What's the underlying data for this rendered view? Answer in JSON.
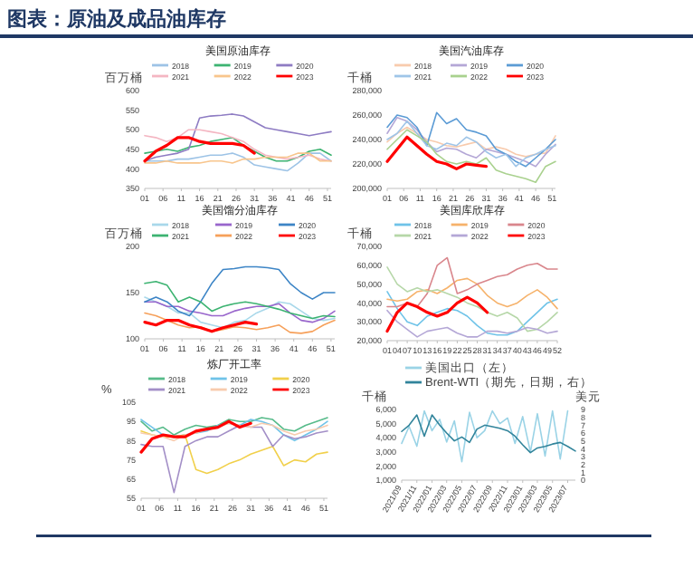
{
  "chart_data": [
    {
      "type": "other",
      "title": "图表：原油及成品油库存"
    },
    {
      "type": "line",
      "title": "美国原油库存",
      "ylabel": "百万桶",
      "legend": "top",
      "x": [
        1,
        4,
        7,
        10,
        13,
        16,
        19,
        22,
        25,
        28,
        31,
        34,
        37,
        40,
        43,
        46,
        49,
        52
      ],
      "xlim": [
        1,
        52
      ],
      "xticks": [
        {
          "value": 1,
          "label": "01"
        },
        {
          "value": 6,
          "label": "06"
        },
        11,
        16,
        21,
        26,
        31,
        36,
        41,
        46,
        51
      ],
      "ylim": [
        350,
        600
      ],
      "yticks": [
        350,
        400,
        450,
        500,
        550,
        600
      ],
      "series": [
        {
          "name": "2018",
          "color": "#9dc3e6",
          "values": [
            420,
            420,
            420,
            425,
            425,
            430,
            435,
            435,
            440,
            430,
            410,
            405,
            400,
            395,
            415,
            440,
            440,
            420
          ]
        },
        {
          "name": "2019",
          "color": "#3cb371",
          "values": [
            440,
            445,
            450,
            445,
            455,
            460,
            470,
            475,
            480,
            460,
            445,
            430,
            420,
            420,
            430,
            445,
            450,
            435
          ]
        },
        {
          "name": "2020",
          "color": "#8e7cc3",
          "values": [
            420,
            430,
            435,
            440,
            450,
            530,
            535,
            537,
            540,
            535,
            520,
            505,
            500,
            495,
            490,
            485,
            490,
            495
          ]
        },
        {
          "name": "2021",
          "color": "#f4b6c2",
          "values": [
            485,
            480,
            470,
            480,
            500,
            500,
            495,
            490,
            480,
            470,
            450,
            435,
            430,
            425,
            430,
            435,
            425,
            420
          ]
        },
        {
          "name": "2022",
          "color": "#f8c58c",
          "values": [
            415,
            415,
            420,
            415,
            415,
            415,
            420,
            420,
            415,
            425,
            425,
            430,
            430,
            430,
            440,
            440,
            420,
            420
          ]
        },
        {
          "name": "2023",
          "color": "#ff0000",
          "x": [
            1,
            4,
            7,
            10,
            13,
            16,
            19,
            22,
            25,
            28,
            31
          ],
          "values": [
            420,
            445,
            460,
            480,
            480,
            470,
            465,
            465,
            465,
            460,
            440
          ]
        }
      ]
    },
    {
      "type": "line",
      "title": "美国汽油库存",
      "ylabel": "千桶",
      "legend": "top",
      "x": [
        1,
        4,
        7,
        10,
        13,
        16,
        19,
        22,
        25,
        28,
        31,
        34,
        37,
        40,
        43,
        46,
        49,
        52
      ],
      "xlim": [
        1,
        52
      ],
      "xticks": [
        {
          "value": 1,
          "label": "01"
        },
        {
          "value": 6,
          "label": "06"
        },
        11,
        16,
        21,
        26,
        31,
        36,
        41,
        46,
        51
      ],
      "ylim": [
        200000,
        280000
      ],
      "yticks": [
        {
          "value": 200000,
          "label": "200,000"
        },
        {
          "value": 220000,
          "label": "220,000"
        },
        {
          "value": 240000,
          "label": "240,000"
        },
        {
          "value": 260000,
          "label": "260,000"
        },
        {
          "value": 280000,
          "label": "280,000"
        }
      ],
      "series": [
        {
          "name": "2018",
          "color": "#f8cbad",
          "values": [
            238000,
            245000,
            250000,
            245000,
            240000,
            238000,
            235000,
            234000,
            236000,
            238000,
            232000,
            234000,
            232000,
            228000,
            226000,
            228000,
            229000,
            243000
          ]
        },
        {
          "name": "2019",
          "color": "#b4a7d6",
          "values": [
            245000,
            258000,
            255000,
            248000,
            238000,
            230000,
            233000,
            232000,
            228000,
            225000,
            232000,
            230000,
            228000,
            225000,
            222000,
            218000,
            228000,
            236000
          ]
        },
        {
          "name": "2020",
          "color": "#5b9bd5",
          "values": [
            250000,
            260000,
            258000,
            250000,
            235000,
            262000,
            253000,
            257000,
            248000,
            246000,
            243000,
            232000,
            228000,
            222000,
            218000,
            225000,
            232000,
            240000
          ]
        },
        {
          "name": "2021",
          "color": "#9fc5e8",
          "values": [
            240000,
            245000,
            255000,
            245000,
            235000,
            232000,
            237000,
            235000,
            242000,
            238000,
            230000,
            225000,
            228000,
            218000,
            225000,
            228000,
            232000,
            235000
          ]
        },
        {
          "name": "2022",
          "color": "#a9d18e",
          "values": [
            232000,
            240000,
            248000,
            243000,
            238000,
            228000,
            222000,
            220000,
            222000,
            220000,
            225000,
            215000,
            212000,
            210000,
            208000,
            205000,
            218000,
            222000
          ]
        },
        {
          "name": "2023",
          "color": "#ff0000",
          "x": [
            1,
            4,
            7,
            10,
            13,
            16,
            19,
            22,
            25,
            28,
            31
          ],
          "values": [
            222000,
            232000,
            242000,
            235000,
            228000,
            222000,
            220000,
            216000,
            220000,
            219000,
            218000
          ]
        }
      ]
    },
    {
      "type": "line",
      "title": "美国馏分油库存",
      "ylabel": "百万桶",
      "legend": "top",
      "x": [
        1,
        4,
        7,
        10,
        13,
        16,
        19,
        22,
        25,
        28,
        31,
        34,
        37,
        40,
        43,
        46,
        49,
        52
      ],
      "xlim": [
        1,
        52
      ],
      "xticks": [
        {
          "value": 1,
          "label": "01"
        },
        {
          "value": 6,
          "label": "06"
        },
        11,
        16,
        21,
        26,
        31,
        36,
        41,
        46,
        51
      ],
      "ylim": [
        100,
        200
      ],
      "yticks": [
        100,
        150,
        200
      ],
      "series": [
        {
          "name": "2018",
          "color": "#a9d8ea",
          "values": [
            145,
            140,
            135,
            128,
            128,
            118,
            115,
            112,
            118,
            120,
            128,
            133,
            140,
            138,
            130,
            122,
            120,
            122
          ]
        },
        {
          "name": "2019",
          "color": "#9966cc",
          "values": [
            140,
            140,
            135,
            135,
            130,
            128,
            125,
            125,
            130,
            133,
            135,
            135,
            138,
            128,
            120,
            118,
            122,
            130
          ]
        },
        {
          "name": "2020",
          "color": "#3d85c6",
          "values": [
            140,
            145,
            140,
            130,
            125,
            140,
            160,
            175,
            176,
            178,
            178,
            177,
            175,
            160,
            150,
            143,
            150,
            150
          ]
        },
        {
          "name": "2021",
          "color": "#3cb371",
          "values": [
            160,
            162,
            158,
            140,
            145,
            140,
            130,
            135,
            138,
            140,
            138,
            135,
            132,
            128,
            125,
            122,
            125,
            124
          ]
        },
        {
          "name": "2022",
          "color": "#f6a05a",
          "values": [
            128,
            125,
            120,
            115,
            112,
            113,
            108,
            110,
            113,
            112,
            110,
            112,
            115,
            107,
            106,
            108,
            115,
            120
          ]
        },
        {
          "name": "2023",
          "color": "#ff0000",
          "x": [
            1,
            4,
            7,
            10,
            13,
            16,
            19,
            22,
            25,
            28,
            31
          ],
          "values": [
            118,
            115,
            120,
            120,
            115,
            112,
            108,
            112,
            115,
            118,
            116
          ]
        }
      ]
    },
    {
      "type": "line",
      "title": "美国库欣库存",
      "ylabel": "千桶",
      "legend": "top",
      "x": [
        1,
        4,
        7,
        10,
        13,
        16,
        19,
        22,
        25,
        28,
        31,
        34,
        37,
        40,
        43,
        46,
        49,
        52
      ],
      "xlim": [
        1,
        52
      ],
      "xticks": [
        {
          "value": 1,
          "label": "01"
        },
        {
          "value": 4,
          "label": "04"
        },
        {
          "value": 7,
          "label": "07"
        },
        10,
        13,
        16,
        19,
        22,
        25,
        28,
        31,
        34,
        37,
        40,
        43,
        46,
        49,
        52
      ],
      "ylim": [
        20000,
        70000
      ],
      "yticks": [
        {
          "value": 20000,
          "label": "20,000"
        },
        {
          "value": 30000,
          "label": "30,000"
        },
        {
          "value": 40000,
          "label": "40,000"
        },
        {
          "value": 50000,
          "label": "50,000"
        },
        {
          "value": 60000,
          "label": "60,000"
        },
        {
          "value": 70000,
          "label": "70,000"
        }
      ],
      "series": [
        {
          "name": "2018",
          "color": "#6fc3e8",
          "values": [
            46000,
            37000,
            30000,
            28000,
            33000,
            35000,
            37000,
            36000,
            33000,
            28000,
            24000,
            23000,
            23000,
            25000,
            30000,
            35000,
            40000,
            42000
          ]
        },
        {
          "name": "2019",
          "color": "#f6b26b",
          "values": [
            42000,
            41000,
            42000,
            46000,
            47000,
            45000,
            48000,
            52000,
            53000,
            50000,
            44000,
            40000,
            38000,
            40000,
            44000,
            47000,
            43000,
            37000
          ]
        },
        {
          "name": "2020",
          "color": "#d9868c",
          "values": [
            38000,
            38000,
            40000,
            38000,
            45000,
            60000,
            64000,
            45000,
            47000,
            50000,
            52000,
            54000,
            55000,
            58000,
            60000,
            61000,
            58000,
            58000
          ]
        },
        {
          "name": "2021",
          "color": "#b6d7a8",
          "values": [
            59000,
            50000,
            46000,
            48000,
            46000,
            47000,
            45000,
            43000,
            40000,
            38000,
            35000,
            33000,
            35000,
            32000,
            25000,
            26000,
            30000,
            35000
          ]
        },
        {
          "name": "2022",
          "color": "#b4a7d6",
          "values": [
            36000,
            30000,
            26000,
            22000,
            25000,
            26000,
            27000,
            24000,
            22000,
            22000,
            25000,
            25000,
            24000,
            25000,
            27000,
            26000,
            24000,
            25000
          ]
        },
        {
          "name": "2023",
          "color": "#ff0000",
          "x": [
            1,
            4,
            7,
            10,
            13,
            16,
            19,
            22,
            25,
            28,
            31
          ],
          "values": [
            25000,
            35000,
            40000,
            38000,
            35000,
            33000,
            35000,
            40000,
            43000,
            40000,
            35000
          ]
        }
      ]
    },
    {
      "type": "line",
      "title": "炼厂开工率",
      "ylabel": "%",
      "legend": "top",
      "x": [
        1,
        4,
        7,
        10,
        13,
        16,
        19,
        22,
        25,
        28,
        31,
        34,
        37,
        40,
        43,
        46,
        49,
        52
      ],
      "xlim": [
        1,
        52
      ],
      "xticks": [
        {
          "value": 1,
          "label": "01"
        },
        {
          "value": 6,
          "label": "06"
        },
        11,
        16,
        21,
        26,
        31,
        36,
        41,
        46,
        51
      ],
      "ylim": [
        55,
        105
      ],
      "yticks": [
        55,
        65,
        75,
        85,
        95,
        105
      ],
      "series": [
        {
          "name": "2018",
          "color": "#57bb8a",
          "values": [
            95,
            90,
            92,
            88,
            91,
            93,
            92,
            93,
            96,
            95,
            95,
            97,
            96,
            91,
            90,
            93,
            95,
            97
          ]
        },
        {
          "name": "2019",
          "color": "#6fc3e8",
          "values": [
            96,
            92,
            88,
            87,
            88,
            89,
            90,
            93,
            94,
            93,
            96,
            95,
            93,
            88,
            85,
            88,
            91,
            95
          ]
        },
        {
          "name": "2020",
          "color": "#f1d04b",
          "values": [
            90,
            88,
            87,
            87,
            88,
            70,
            68,
            70,
            73,
            75,
            78,
            80,
            82,
            72,
            75,
            74,
            78,
            79
          ]
        },
        {
          "name": "2021",
          "color": "#a38fc7",
          "values": [
            83,
            82,
            82,
            58,
            82,
            85,
            87,
            87,
            90,
            93,
            92,
            92,
            82,
            88,
            86,
            87,
            89,
            90
          ]
        },
        {
          "name": "2022",
          "color": "#f8cbad",
          "values": [
            89,
            88,
            87,
            85,
            88,
            89,
            91,
            92,
            94,
            93,
            92,
            94,
            93,
            90,
            88,
            90,
            91,
            93
          ]
        },
        {
          "name": "2023",
          "color": "#ff0000",
          "x": [
            1,
            4,
            7,
            10,
            13,
            16,
            19,
            22,
            25,
            28,
            31
          ],
          "values": [
            79,
            86,
            88,
            87,
            87,
            90,
            91,
            92,
            95,
            92,
            94
          ]
        }
      ]
    },
    {
      "type": "line",
      "ylabel": "千桶",
      "y2label": "美元",
      "legend": "top",
      "xlim": [
        "2021-09",
        "2023-08"
      ],
      "xticks": [
        {
          "value": "2021-09",
          "label": "2021/09"
        },
        {
          "value": "2021-11",
          "label": "2021/11"
        },
        {
          "value": "2022-01",
          "label": "2022/01"
        },
        {
          "value": "2022-03",
          "label": "2022/03"
        },
        {
          "value": "2022-05",
          "label": "2022/05"
        },
        {
          "value": "2022-07",
          "label": "2022/07"
        },
        {
          "value": "2022-09",
          "label": "2022/09"
        },
        {
          "value": "2022-11",
          "label": "2022/11"
        },
        {
          "value": "2023-01",
          "label": "2023/01"
        },
        {
          "value": "2023-03",
          "label": "2023/03"
        },
        {
          "value": "2023-05",
          "label": "2023/05"
        },
        {
          "value": "2023-07",
          "label": "2023/07"
        }
      ],
      "ylim": [
        1000,
        6000
      ],
      "yticks": [
        {
          "value": 1000,
          "label": "1,000"
        },
        {
          "value": 2000,
          "label": "2,000"
        },
        {
          "value": 3000,
          "label": "3,000"
        },
        {
          "value": 4000,
          "label": "4,000"
        },
        {
          "value": 5000,
          "label": "5,000"
        },
        {
          "value": 6000,
          "label": "6,000"
        }
      ],
      "y2lim": [
        0,
        9
      ],
      "y2ticks": [
        0,
        1,
        2,
        3,
        4,
        5,
        6,
        7,
        8,
        9
      ],
      "series": [
        {
          "name": "美国出口（左）",
          "color": "#9ad3e6",
          "x": [
            "2021-09",
            "2021-10",
            "2021-11",
            "2021-12",
            "2022-01",
            "2022-02",
            "2022-03",
            "2022-04",
            "2022-05",
            "2022-06",
            "2022-07",
            "2022-08",
            "2022-09",
            "2022-10",
            "2022-11",
            "2022-12",
            "2023-01",
            "2023-02",
            "2023-03",
            "2023-04",
            "2023-05",
            "2023-06",
            "2023-07"
          ],
          "values": [
            3600,
            4800,
            3400,
            5900,
            4500,
            5300,
            3700,
            5200,
            2300,
            5800,
            4000,
            4500,
            5900,
            5000,
            5400,
            3600,
            5500,
            3000,
            5700,
            2700,
            5900,
            2500,
            5900
          ]
        },
        {
          "name": "Brent-WTI（期先，日期，右）",
          "color": "#31849b",
          "axis": "y2",
          "x": [
            "2021-09",
            "2021-10",
            "2021-11",
            "2021-12",
            "2022-01",
            "2022-02",
            "2022-03",
            "2022-04",
            "2022-05",
            "2022-06",
            "2022-07",
            "2022-08",
            "2022-09",
            "2022-10",
            "2022-11",
            "2022-12",
            "2023-01",
            "2023-02",
            "2023-03",
            "2023-04",
            "2023-05",
            "2023-06",
            "2023-07",
            "2023-08"
          ],
          "values": [
            6.2,
            7.0,
            8.3,
            5.6,
            8.3,
            7.0,
            6.0,
            5.0,
            5.5,
            4.8,
            6.5,
            7.0,
            6.8,
            6.6,
            6.3,
            5.6,
            4.5,
            3.5,
            4.1,
            4.3,
            4.6,
            4.8,
            4.3,
            3.7
          ]
        }
      ]
    }
  ]
}
